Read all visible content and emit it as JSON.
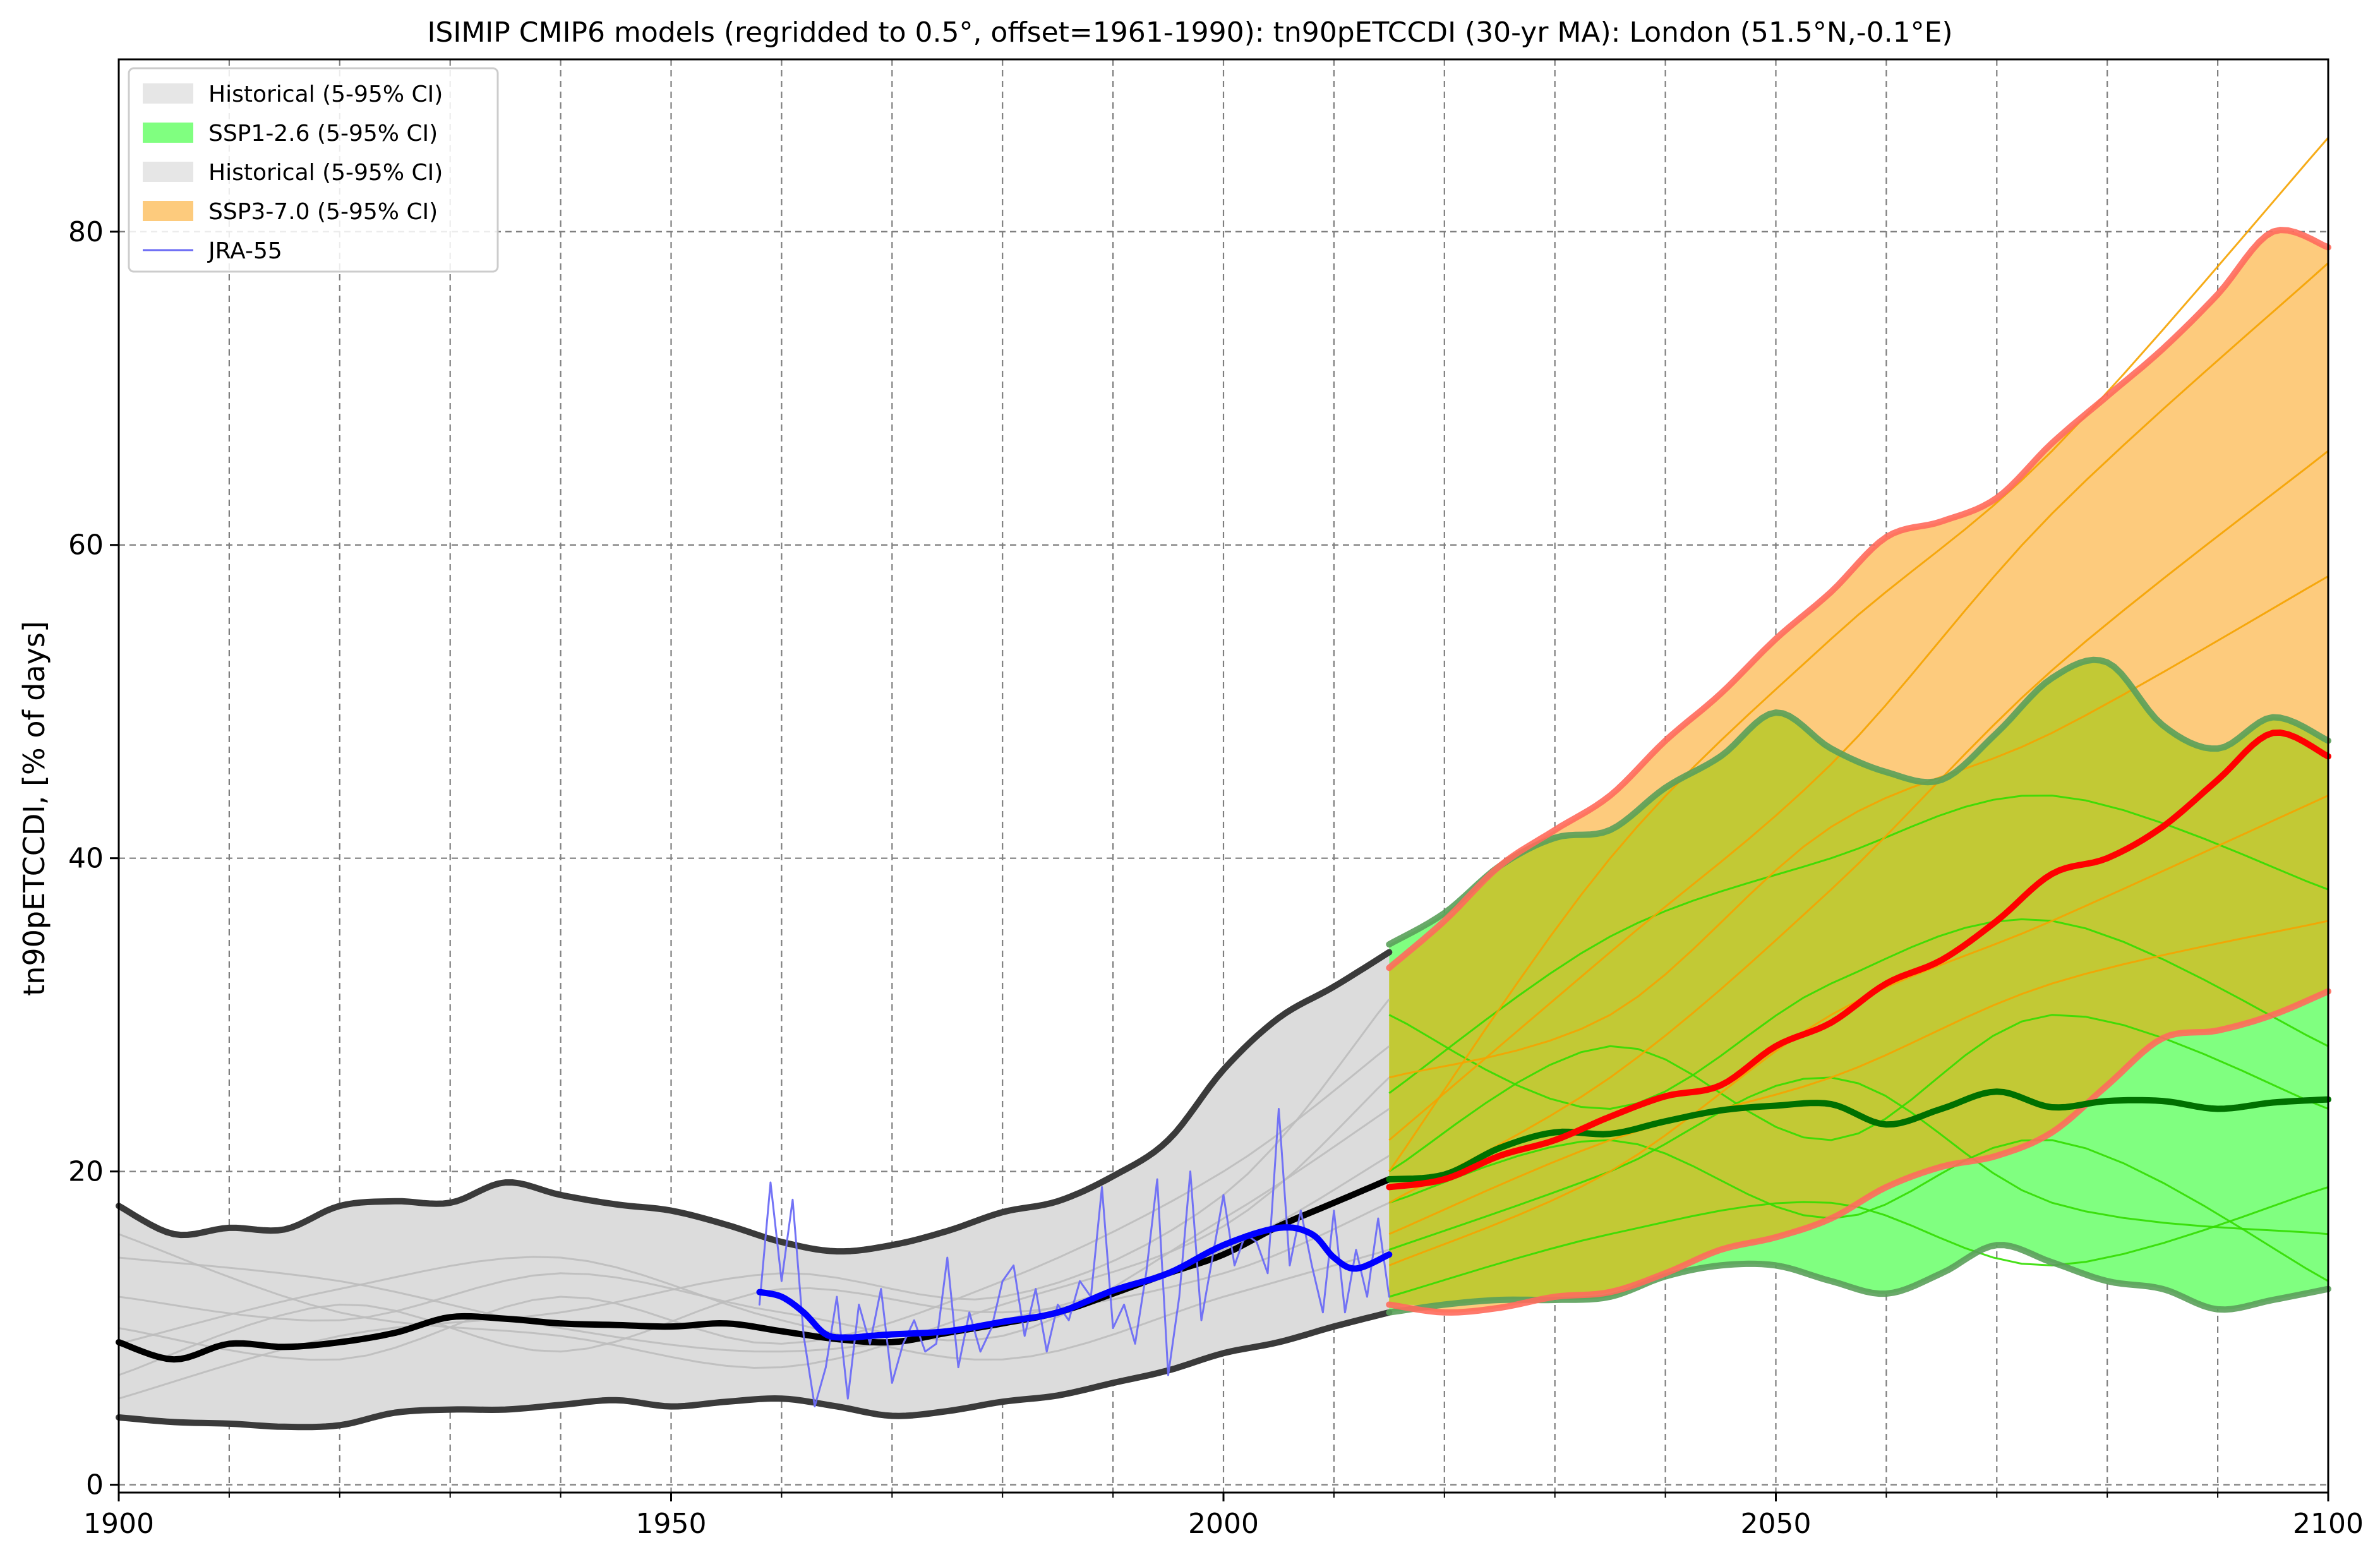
{
  "chart_data": {
    "type": "line",
    "title": "ISIMIP CMIP6 models (regridded to 0.5°, offset=1961-1990): tn90pETCCDI (30-yr MA): London (51.5°N,-0.1°E)",
    "xlabel": "",
    "ylabel": "tn90pETCCDI, [% of days]",
    "xlim": [
      1900,
      2100
    ],
    "ylim": [
      -0.5,
      91
    ],
    "xticks": [
      1900,
      1950,
      2000,
      2050,
      2100
    ],
    "yticks": [
      0,
      20,
      40,
      60,
      80
    ],
    "grid": true,
    "legend_position": "top-left",
    "legend": [
      {
        "label": "Historical (5-95% CI)",
        "kind": "patch",
        "color": "#e6e6e6"
      },
      {
        "label": "SSP1-2.6 (5-95% CI)",
        "kind": "patch",
        "color": "#80ff80"
      },
      {
        "label": "Historical (5-95% CI)",
        "kind": "patch",
        "color": "#e6e6e6"
      },
      {
        "label": "SSP3-7.0 (5-95% CI)",
        "kind": "patch",
        "color": "#fdcb7d"
      },
      {
        "label": "JRA-55",
        "kind": "line",
        "color": "#6b6bf5"
      }
    ],
    "colors": {
      "historical_fill": "#dcdcdc",
      "historical_bound": "#3a3a3a",
      "historical_median": "#000000",
      "historical_members": "#bdbdbd",
      "ssp126_fill": "#80ff80",
      "ssp126_bound": "#5aa05a",
      "ssp126_median": "#007000",
      "ssp126_members": "#33dd00",
      "ssp370_fill": "#fdcb7d",
      "ssp370_bound": "#ff6a5c",
      "ssp370_median": "#ff0000",
      "ssp370_members": "#f5a300",
      "overlap_fill": "#c2c935",
      "jra55": "#6b6bf5",
      "jra55_ma": "#0000ff"
    },
    "series": [
      {
        "name": "Historical (5-95% CI)",
        "role": "band",
        "x": [
          1900,
          1905,
          1910,
          1915,
          1920,
          1925,
          1930,
          1935,
          1940,
          1945,
          1950,
          1955,
          1960,
          1965,
          1970,
          1975,
          1980,
          1985,
          1990,
          1995,
          2000,
          2005,
          2010,
          2015
        ],
        "upper": [
          17.8,
          16.0,
          16.4,
          16.3,
          17.8,
          18.1,
          18.0,
          19.3,
          18.5,
          17.9,
          17.5,
          16.6,
          15.5,
          14.9,
          15.3,
          16.2,
          17.4,
          18.1,
          19.7,
          22.0,
          26.5,
          29.8,
          31.8,
          34.0
        ],
        "lower": [
          4.3,
          4.0,
          3.9,
          3.7,
          3.8,
          4.6,
          4.8,
          4.8,
          5.1,
          5.4,
          5.0,
          5.3,
          5.5,
          5.0,
          4.4,
          4.7,
          5.3,
          5.7,
          6.5,
          7.3,
          8.4,
          9.1,
          10.1,
          11.0
        ]
      },
      {
        "name": "Historical median",
        "role": "median",
        "x": [
          1900,
          1905,
          1910,
          1915,
          1920,
          1925,
          1930,
          1935,
          1940,
          1945,
          1950,
          1955,
          1960,
          1965,
          1970,
          1975,
          1980,
          1985,
          1990,
          1995,
          2000,
          2005,
          2010,
          2015
        ],
        "y": [
          9.1,
          8.0,
          9.0,
          8.8,
          9.1,
          9.7,
          10.7,
          10.6,
          10.3,
          10.2,
          10.1,
          10.3,
          9.8,
          9.3,
          9.1,
          9.7,
          10.3,
          11.0,
          12.2,
          13.5,
          14.7,
          16.5,
          18.0,
          19.5
        ]
      },
      {
        "name": "SSP1-2.6 (5-95% CI)",
        "role": "band",
        "x": [
          2015,
          2020,
          2025,
          2030,
          2035,
          2040,
          2045,
          2050,
          2055,
          2060,
          2065,
          2070,
          2075,
          2080,
          2085,
          2090,
          2095,
          2100
        ],
        "upper": [
          34.5,
          36.5,
          39.5,
          41.3,
          41.8,
          44.5,
          46.5,
          49.3,
          47.0,
          45.5,
          45.0,
          48.0,
          51.5,
          52.5,
          48.5,
          47.0,
          49.0,
          47.5
        ],
        "lower": [
          11.0,
          11.5,
          11.8,
          11.8,
          12.0,
          13.3,
          14.0,
          14.0,
          13.0,
          12.2,
          13.5,
          15.3,
          14.2,
          13.0,
          12.5,
          11.2,
          11.8,
          12.5
        ]
      },
      {
        "name": "SSP1-2.6 median",
        "role": "median",
        "x": [
          2015,
          2020,
          2025,
          2030,
          2035,
          2040,
          2045,
          2050,
          2055,
          2060,
          2065,
          2070,
          2075,
          2080,
          2085,
          2090,
          2095,
          2100
        ],
        "y": [
          19.5,
          19.8,
          21.5,
          22.5,
          22.4,
          23.2,
          23.9,
          24.2,
          24.3,
          23.0,
          24.0,
          25.1,
          24.1,
          24.5,
          24.5,
          24.0,
          24.4,
          24.6
        ]
      },
      {
        "name": "SSP3-7.0 (5-95% CI)",
        "role": "band",
        "x": [
          2015,
          2020,
          2025,
          2030,
          2035,
          2040,
          2045,
          2050,
          2055,
          2060,
          2065,
          2070,
          2075,
          2080,
          2085,
          2090,
          2095,
          2100
        ],
        "upper": [
          33.0,
          36.0,
          39.5,
          41.8,
          44.0,
          47.5,
          50.5,
          54.0,
          57.0,
          60.5,
          61.5,
          63.0,
          66.5,
          69.5,
          72.5,
          76.0,
          80.0,
          79.0
        ],
        "lower": [
          11.5,
          11.0,
          11.3,
          12.0,
          12.3,
          13.5,
          15.0,
          15.8,
          17.0,
          19.0,
          20.3,
          21.0,
          22.5,
          25.5,
          28.5,
          29.0,
          30.0,
          31.5
        ]
      },
      {
        "name": "SSP3-7.0 median",
        "role": "median",
        "x": [
          2015,
          2020,
          2025,
          2030,
          2035,
          2040,
          2045,
          2050,
          2055,
          2060,
          2065,
          2070,
          2075,
          2080,
          2085,
          2090,
          2095,
          2100
        ],
        "y": [
          19.0,
          19.5,
          21.0,
          22.0,
          23.5,
          24.8,
          25.5,
          28.0,
          29.5,
          32.0,
          33.5,
          36.0,
          39.0,
          40.0,
          42.0,
          45.0,
          48.0,
          46.5
        ]
      },
      {
        "name": "JRA-55",
        "role": "observed",
        "x": [
          1958,
          1959,
          1960,
          1961,
          1962,
          1963,
          1964,
          1965,
          1966,
          1967,
          1968,
          1969,
          1970,
          1971,
          1972,
          1973,
          1974,
          1975,
          1976,
          1977,
          1978,
          1979,
          1980,
          1981,
          1982,
          1983,
          1984,
          1985,
          1986,
          1987,
          1988,
          1989,
          1990,
          1991,
          1992,
          1993,
          1994,
          1995,
          1996,
          1997,
          1998,
          1999,
          2000,
          2001,
          2002,
          2003,
          2004,
          2005,
          2006,
          2007,
          2008,
          2009,
          2010,
          2011,
          2012,
          2013,
          2014,
          2015
        ],
        "y": [
          11.5,
          19.3,
          13.0,
          18.2,
          9.5,
          5.0,
          7.5,
          12.0,
          5.5,
          11.5,
          9.0,
          12.5,
          6.5,
          9.0,
          10.5,
          8.5,
          9.0,
          14.5,
          7.5,
          11.0,
          8.5,
          10.0,
          13.0,
          14.0,
          9.5,
          12.5,
          8.5,
          11.5,
          10.5,
          13.0,
          12.0,
          19.0,
          10.0,
          11.5,
          9.0,
          13.5,
          19.5,
          7.0,
          12.0,
          20.0,
          10.5,
          14.5,
          18.5,
          14.0,
          16.0,
          15.5,
          13.5,
          24.0,
          14.0,
          17.5,
          14.0,
          11.0,
          17.5,
          11.0,
          15.0,
          12.0,
          17.0,
          12.0
        ]
      },
      {
        "name": "JRA-55 moving average",
        "role": "observed-ma",
        "x": [
          1958,
          1960,
          1962,
          1964,
          1966,
          1968,
          1970,
          1975,
          1980,
          1985,
          1990,
          1995,
          2000,
          2005,
          2008,
          2010,
          2012,
          2015
        ],
        "y": [
          12.3,
          12.0,
          11.0,
          9.6,
          9.4,
          9.5,
          9.6,
          9.8,
          10.4,
          11.0,
          12.4,
          13.5,
          15.3,
          16.4,
          16.0,
          14.5,
          13.8,
          14.7
        ]
      }
    ],
    "member_curves": {
      "historical": [
        {
          "x": [
            1900,
            1920,
            1940,
            1960,
            1980,
            2000,
            2015
          ],
          "y": [
            12.0,
            10.5,
            13.5,
            11.0,
            9.5,
            17.0,
            24.0
          ]
        },
        {
          "x": [
            1900,
            1920,
            1940,
            1960,
            1980,
            2000,
            2015
          ],
          "y": [
            7.0,
            11.5,
            8.5,
            12.5,
            11.0,
            13.5,
            18.0
          ]
        },
        {
          "x": [
            1900,
            1920,
            1940,
            1960,
            1980,
            2000,
            2015
          ],
          "y": [
            10.0,
            8.0,
            12.0,
            9.0,
            13.0,
            20.0,
            28.0
          ]
        },
        {
          "x": [
            1900,
            1920,
            1940,
            1960,
            1980,
            2000,
            2015
          ],
          "y": [
            14.5,
            13.0,
            10.0,
            8.5,
            10.5,
            15.0,
            21.0
          ]
        },
        {
          "x": [
            1900,
            1920,
            1940,
            1960,
            1980,
            2000,
            2015
          ],
          "y": [
            5.5,
            9.5,
            11.0,
            13.5,
            12.0,
            18.5,
            31.0
          ]
        },
        {
          "x": [
            1900,
            1920,
            1940,
            1960,
            1980,
            2000,
            2015
          ],
          "y": [
            9.0,
            12.5,
            14.5,
            10.5,
            8.0,
            12.0,
            15.0
          ]
        },
        {
          "x": [
            1900,
            1920,
            1940,
            1960,
            1980,
            2000,
            2015
          ],
          "y": [
            16.0,
            11.0,
            9.5,
            7.5,
            11.5,
            16.5,
            26.0
          ]
        }
      ],
      "ssp126": [
        {
          "x": [
            2015,
            2035,
            2055,
            2075,
            2100
          ],
          "y": [
            20.0,
            28.0,
            22.0,
            30.0,
            24.0
          ]
        },
        {
          "x": [
            2015,
            2035,
            2055,
            2075,
            2100
          ],
          "y": [
            15.0,
            20.0,
            26.0,
            18.0,
            16.0
          ]
        },
        {
          "x": [
            2015,
            2035,
            2055,
            2075,
            2100
          ],
          "y": [
            25.0,
            35.0,
            40.0,
            44.0,
            38.0
          ]
        },
        {
          "x": [
            2015,
            2035,
            2055,
            2075,
            2100
          ],
          "y": [
            12.0,
            16.0,
            18.0,
            14.0,
            19.0
          ]
        },
        {
          "x": [
            2015,
            2035,
            2055,
            2075,
            2100
          ],
          "y": [
            30.0,
            24.0,
            32.0,
            36.0,
            28.0
          ]
        },
        {
          "x": [
            2015,
            2035,
            2055,
            2075,
            2100
          ],
          "y": [
            18.0,
            22.0,
            17.0,
            22.0,
            13.0
          ]
        }
      ],
      "ssp370": [
        {
          "x": [
            2015,
            2035,
            2055,
            2075,
            2100
          ],
          "y": [
            22.0,
            34.0,
            46.0,
            62.0,
            78.0
          ]
        },
        {
          "x": [
            2015,
            2035,
            2055,
            2075,
            2100
          ],
          "y": [
            18.0,
            26.0,
            38.0,
            52.0,
            66.0
          ]
        },
        {
          "x": [
            2015,
            2035,
            2055,
            2075,
            2100
          ],
          "y": [
            26.0,
            30.0,
            42.0,
            48.0,
            58.0
          ]
        },
        {
          "x": [
            2015,
            2035,
            2055,
            2075,
            2100
          ],
          "y": [
            14.0,
            20.0,
            30.0,
            36.0,
            44.0
          ]
        },
        {
          "x": [
            2015,
            2035,
            2055,
            2075,
            2100
          ],
          "y": [
            20.0,
            40.0,
            54.0,
            66.0,
            86.0
          ]
        },
        {
          "x": [
            2015,
            2035,
            2055,
            2075,
            2100
          ],
          "y": [
            16.0,
            22.0,
            26.0,
            32.0,
            36.0
          ]
        }
      ]
    }
  }
}
